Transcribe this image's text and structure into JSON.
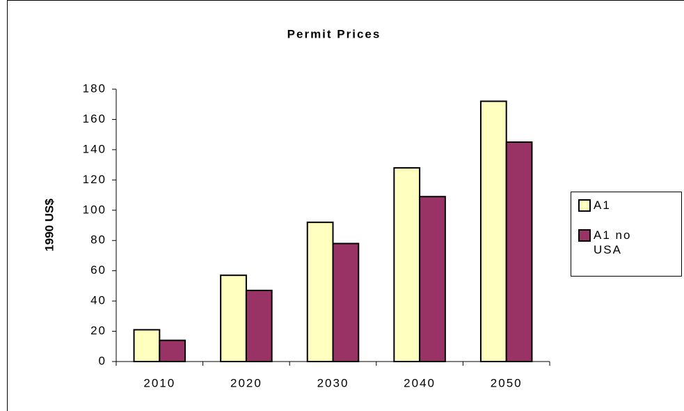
{
  "chart_data": {
    "type": "bar",
    "title": "Permit Prices",
    "y_label": "1990 US$",
    "categories": [
      "2010",
      "2020",
      "2030",
      "2040",
      "2050"
    ],
    "series": [
      {
        "name": "A1",
        "color": "#ffffc0",
        "values": [
          21,
          57,
          92,
          128,
          172
        ]
      },
      {
        "name": "A1 no USA",
        "color": "#993366",
        "values": [
          14,
          47,
          78,
          109,
          145
        ]
      }
    ],
    "ylim": [
      0,
      180
    ],
    "yticks": [
      0,
      20,
      40,
      60,
      80,
      100,
      120,
      140,
      160,
      180
    ],
    "grid": false,
    "legend": "right"
  }
}
